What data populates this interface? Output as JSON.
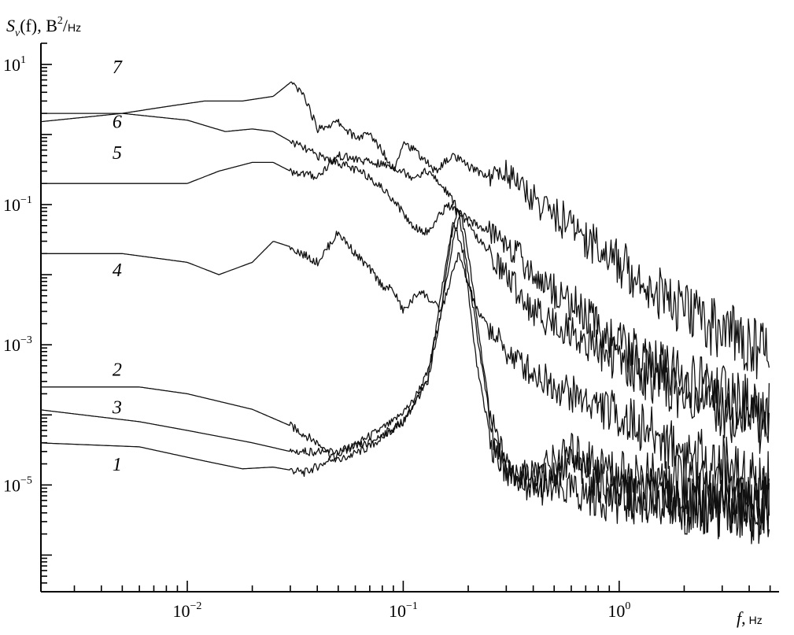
{
  "chart_data": {
    "type": "line",
    "title": "",
    "ylabel": {
      "main": "S",
      "sub": "v",
      "paren": "(f), B",
      "sup": "2",
      "slash": "/",
      "unit": "Hz"
    },
    "xlabel": {
      "main": "f",
      "sep": ",",
      "unit": "Hz"
    },
    "x_scale": "log",
    "y_scale": "log",
    "xlim": [
      0.0021,
      5.5
    ],
    "ylim": [
      3e-07,
      20
    ],
    "x_ticks": [
      {
        "value": 0.01,
        "base": "10",
        "exp": "−2"
      },
      {
        "value": 0.1,
        "base": "10",
        "exp": "−1"
      },
      {
        "value": 1,
        "base": "10",
        "exp": "0"
      }
    ],
    "y_ticks": [
      {
        "value": 10,
        "base": "10",
        "exp": "1"
      },
      {
        "value": 0.1,
        "base": "10",
        "exp": "−1"
      },
      {
        "value": 0.001,
        "base": "10",
        "exp": "−3"
      },
      {
        "value": 1e-05,
        "base": "10",
        "exp": "−5"
      }
    ],
    "grid": false,
    "series": [
      {
        "label": "1",
        "x": [
          0.002,
          0.006,
          0.012,
          0.018,
          0.025,
          0.035,
          0.045,
          0.055,
          0.07,
          0.09,
          0.11,
          0.13,
          0.15,
          0.17,
          0.185,
          0.2,
          0.23,
          0.26,
          0.3,
          0.4,
          0.6,
          1.0,
          2.0,
          5.0
        ],
        "y": [
          4e-05,
          3.5e-05,
          2.2e-05,
          1.7e-05,
          1.8e-05,
          1.5e-05,
          2.2e-05,
          3.2e-05,
          5e-05,
          8e-05,
          0.00015,
          0.0004,
          0.003,
          0.03,
          0.08,
          0.02,
          0.0008,
          5e-05,
          1.5e-05,
          9e-06,
          8e-06,
          6e-06,
          5e-06,
          4e-06
        ]
      },
      {
        "label": "2",
        "x": [
          0.002,
          0.006,
          0.01,
          0.02,
          0.03,
          0.04,
          0.05,
          0.07,
          0.1,
          0.13,
          0.16,
          0.18,
          0.2,
          0.25,
          0.3,
          0.4,
          0.6,
          1.0,
          2.0,
          5.0
        ],
        "y": [
          0.00025,
          0.00025,
          0.0002,
          0.00012,
          7e-05,
          4e-05,
          2.2e-05,
          3.5e-05,
          8e-05,
          0.0003,
          0.02,
          0.09,
          0.01,
          0.0001,
          2e-05,
          1e-05,
          2e-05,
          8e-06,
          6e-06,
          4e-06
        ]
      },
      {
        "label": "3",
        "x": [
          0.002,
          0.006,
          0.01,
          0.02,
          0.03,
          0.05,
          0.07,
          0.1,
          0.13,
          0.15,
          0.17,
          0.19,
          0.22,
          0.26,
          0.3,
          0.4,
          0.6,
          1.0,
          2.0,
          5.0
        ],
        "y": [
          0.00012,
          8e-05,
          6e-05,
          4e-05,
          3e-05,
          3e-05,
          4e-05,
          8e-05,
          0.0003,
          0.003,
          0.06,
          0.02,
          0.0005,
          3e-05,
          1.5e-05,
          1.5e-05,
          3e-05,
          1.5e-05,
          1e-05,
          6e-06
        ]
      },
      {
        "label": "4",
        "x": [
          0.002,
          0.005,
          0.01,
          0.014,
          0.02,
          0.025,
          0.03,
          0.04,
          0.05,
          0.06,
          0.07,
          0.08,
          0.09,
          0.1,
          0.12,
          0.15,
          0.18,
          0.22,
          0.3,
          0.4,
          0.6,
          1.0,
          2.0,
          5.0
        ],
        "y": [
          0.02,
          0.02,
          0.015,
          0.01,
          0.015,
          0.03,
          0.025,
          0.015,
          0.04,
          0.02,
          0.012,
          0.007,
          0.006,
          0.003,
          0.006,
          0.003,
          0.02,
          0.003,
          0.0008,
          0.0004,
          0.0002,
          0.0001,
          3e-05,
          1e-05
        ]
      },
      {
        "label": "5",
        "x": [
          0.002,
          0.006,
          0.01,
          0.014,
          0.02,
          0.025,
          0.03,
          0.04,
          0.05,
          0.07,
          0.09,
          0.11,
          0.13,
          0.16,
          0.2,
          0.25,
          0.3,
          0.4,
          0.6,
          1.0,
          2.0,
          5.0
        ],
        "y": [
          0.2,
          0.2,
          0.2,
          0.3,
          0.4,
          0.4,
          0.3,
          0.25,
          0.5,
          0.4,
          0.35,
          0.25,
          0.3,
          0.15,
          0.05,
          0.02,
          0.01,
          0.003,
          0.0015,
          0.0006,
          0.0002,
          8e-05
        ]
      },
      {
        "label": "6",
        "x": [
          0.002,
          0.005,
          0.01,
          0.015,
          0.02,
          0.025,
          0.03,
          0.04,
          0.05,
          0.07,
          0.09,
          0.11,
          0.13,
          0.16,
          0.2,
          0.3,
          0.4,
          0.6,
          1.0,
          2.0,
          5.0
        ],
        "y": [
          2.0,
          2.0,
          1.6,
          1.1,
          1.2,
          1.1,
          0.8,
          0.5,
          0.4,
          0.25,
          0.12,
          0.05,
          0.04,
          0.1,
          0.06,
          0.03,
          0.01,
          0.004,
          0.001,
          0.0003,
          0.0001
        ]
      },
      {
        "label": "7",
        "x": [
          0.002,
          0.005,
          0.008,
          0.012,
          0.018,
          0.025,
          0.03,
          0.035,
          0.04,
          0.05,
          0.06,
          0.07,
          0.08,
          0.09,
          0.1,
          0.12,
          0.14,
          0.17,
          0.2,
          0.25,
          0.3,
          0.4,
          0.6,
          1.0,
          2.0,
          5.0
        ],
        "y": [
          1.5,
          2.0,
          2.5,
          3.0,
          3.0,
          3.5,
          5.5,
          3.5,
          1.2,
          1.5,
          0.9,
          1.0,
          0.6,
          0.3,
          0.8,
          0.5,
          0.3,
          0.5,
          0.35,
          0.25,
          0.3,
          0.12,
          0.05,
          0.015,
          0.003,
          0.0008
        ]
      }
    ],
    "curve_labels": [
      {
        "text": "7",
        "x": 0.0045,
        "y": 7.5
      },
      {
        "text": "6",
        "x": 0.0045,
        "y": 1.25
      },
      {
        "text": "5",
        "x": 0.0045,
        "y": 0.45
      },
      {
        "text": "4",
        "x": 0.0045,
        "y": 0.0095
      },
      {
        "text": "2",
        "x": 0.0045,
        "y": 0.00036
      },
      {
        "text": "3",
        "x": 0.0045,
        "y": 0.000105
      },
      {
        "text": "1",
        "x": 0.0045,
        "y": 1.6e-05
      }
    ]
  }
}
